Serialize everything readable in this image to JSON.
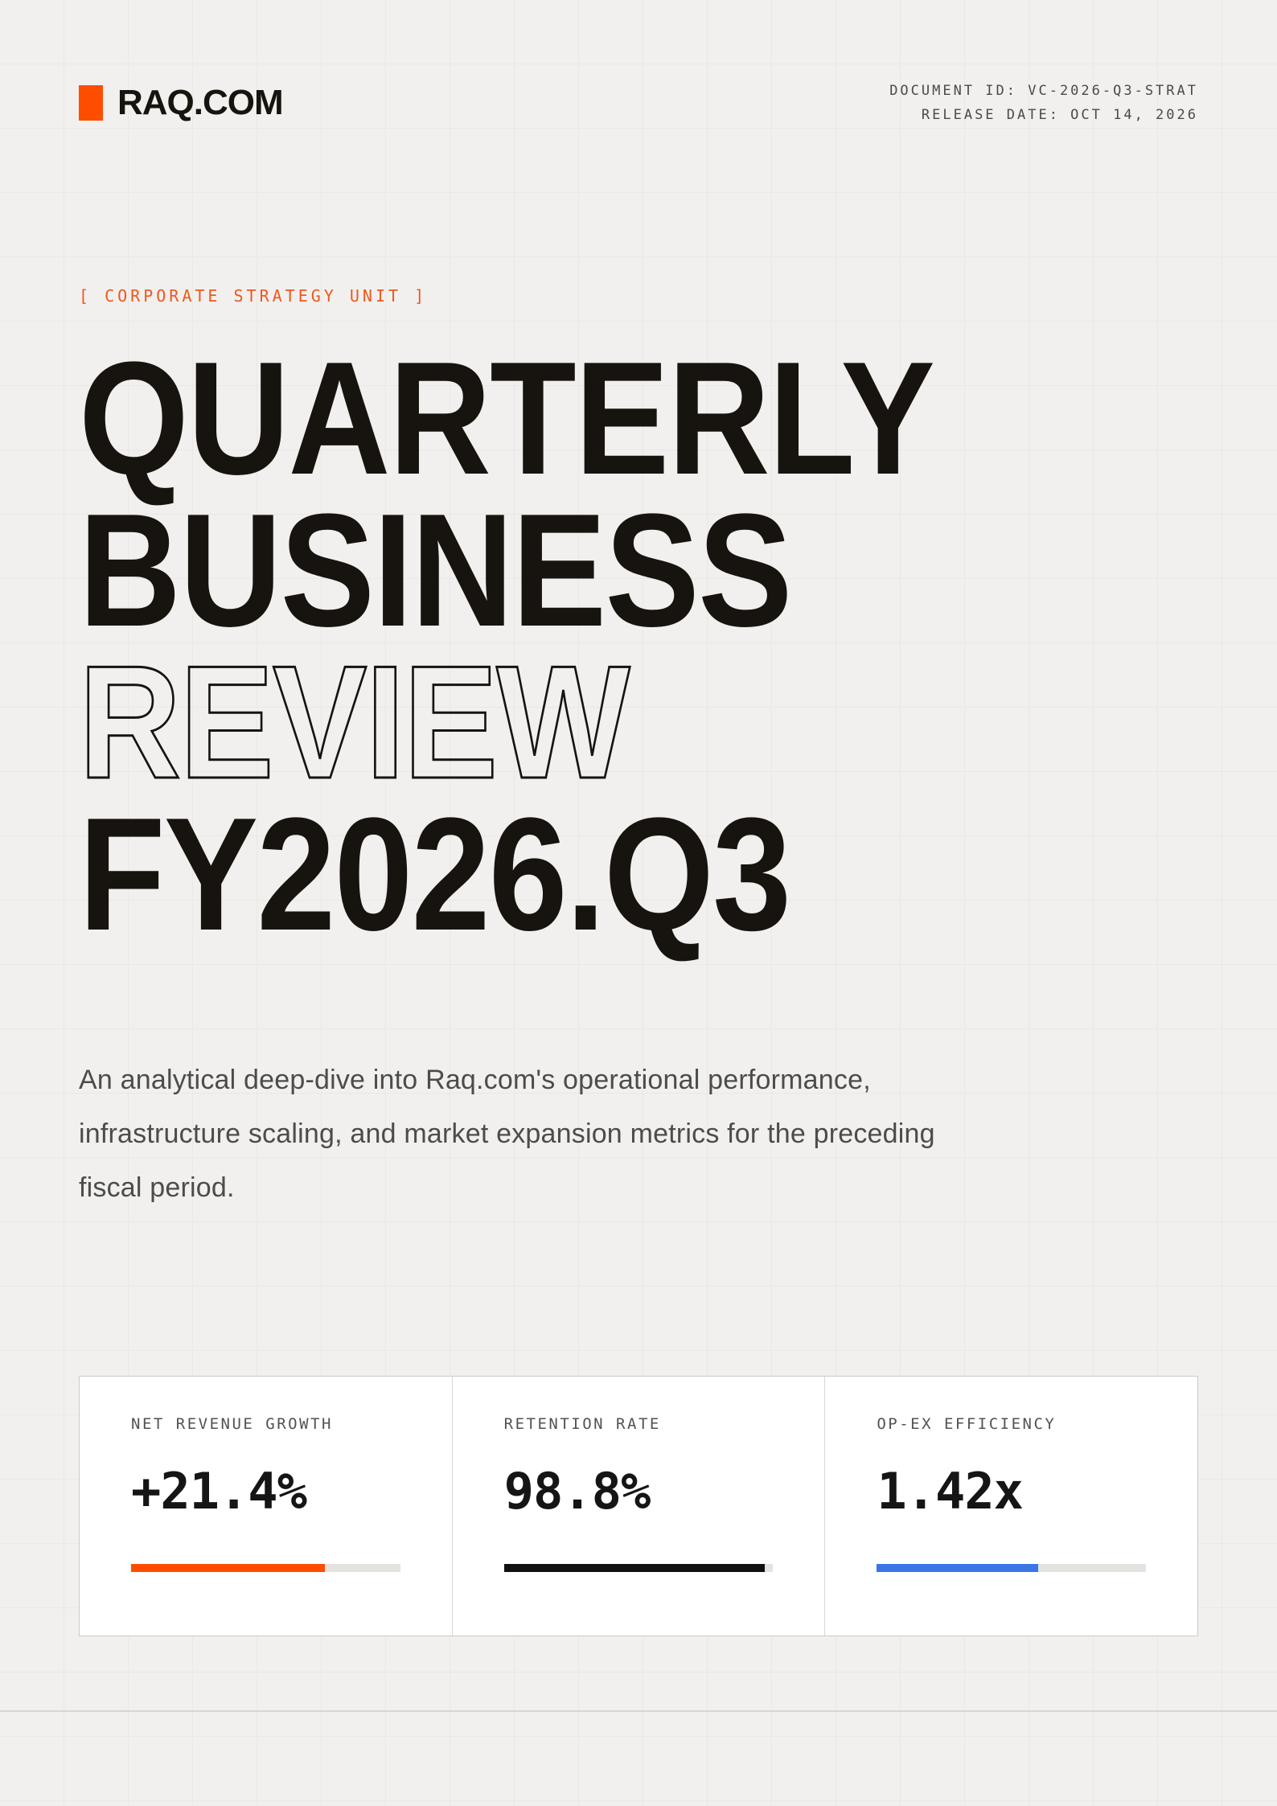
{
  "page": {
    "background": "#f1f0ee",
    "grid_line_color": "#e9e8e5",
    "accent_orange": "#FF4D00",
    "kicker_orange": "#F0571D",
    "accent_blue": "#3B76E8"
  },
  "header": {
    "brand": "RAQ.COM",
    "logo_color": "#FF4D00",
    "document_id": "DOCUMENT ID: VC-2026-Q3-STRAT",
    "release_date": "RELEASE DATE: OCT 14, 2026"
  },
  "hero": {
    "kicker": "[ CORPORATE STRATEGY UNIT ]",
    "title_line1": "QUARTERLY",
    "title_line2": "BUSINESS",
    "title_line3": "REVIEW",
    "title_line4": "FY2026.Q3",
    "description": "An analytical deep-dive into Raq.com's operational performance,\ninfrastructure scaling, and market expansion metrics for the preceding\nfiscal period."
  },
  "metrics": {
    "cards": [
      {
        "label": "NET REVENUE GROWTH",
        "value": "+21.4%",
        "bar_percent": 72,
        "bar_color": "#FF4D00",
        "bar_style": "width:72%;background:#FF4D00"
      },
      {
        "label": "RETENTION RATE",
        "value": "98.8%",
        "bar_percent": 97,
        "bar_color": "#111111",
        "bar_style": "width:97%;background:#111111"
      },
      {
        "label": "OP-EX EFFICIENCY",
        "value": "1.42x",
        "bar_percent": 60,
        "bar_color": "#3B76E8",
        "bar_style": "width:60%;background:#3B76E8"
      }
    ]
  }
}
